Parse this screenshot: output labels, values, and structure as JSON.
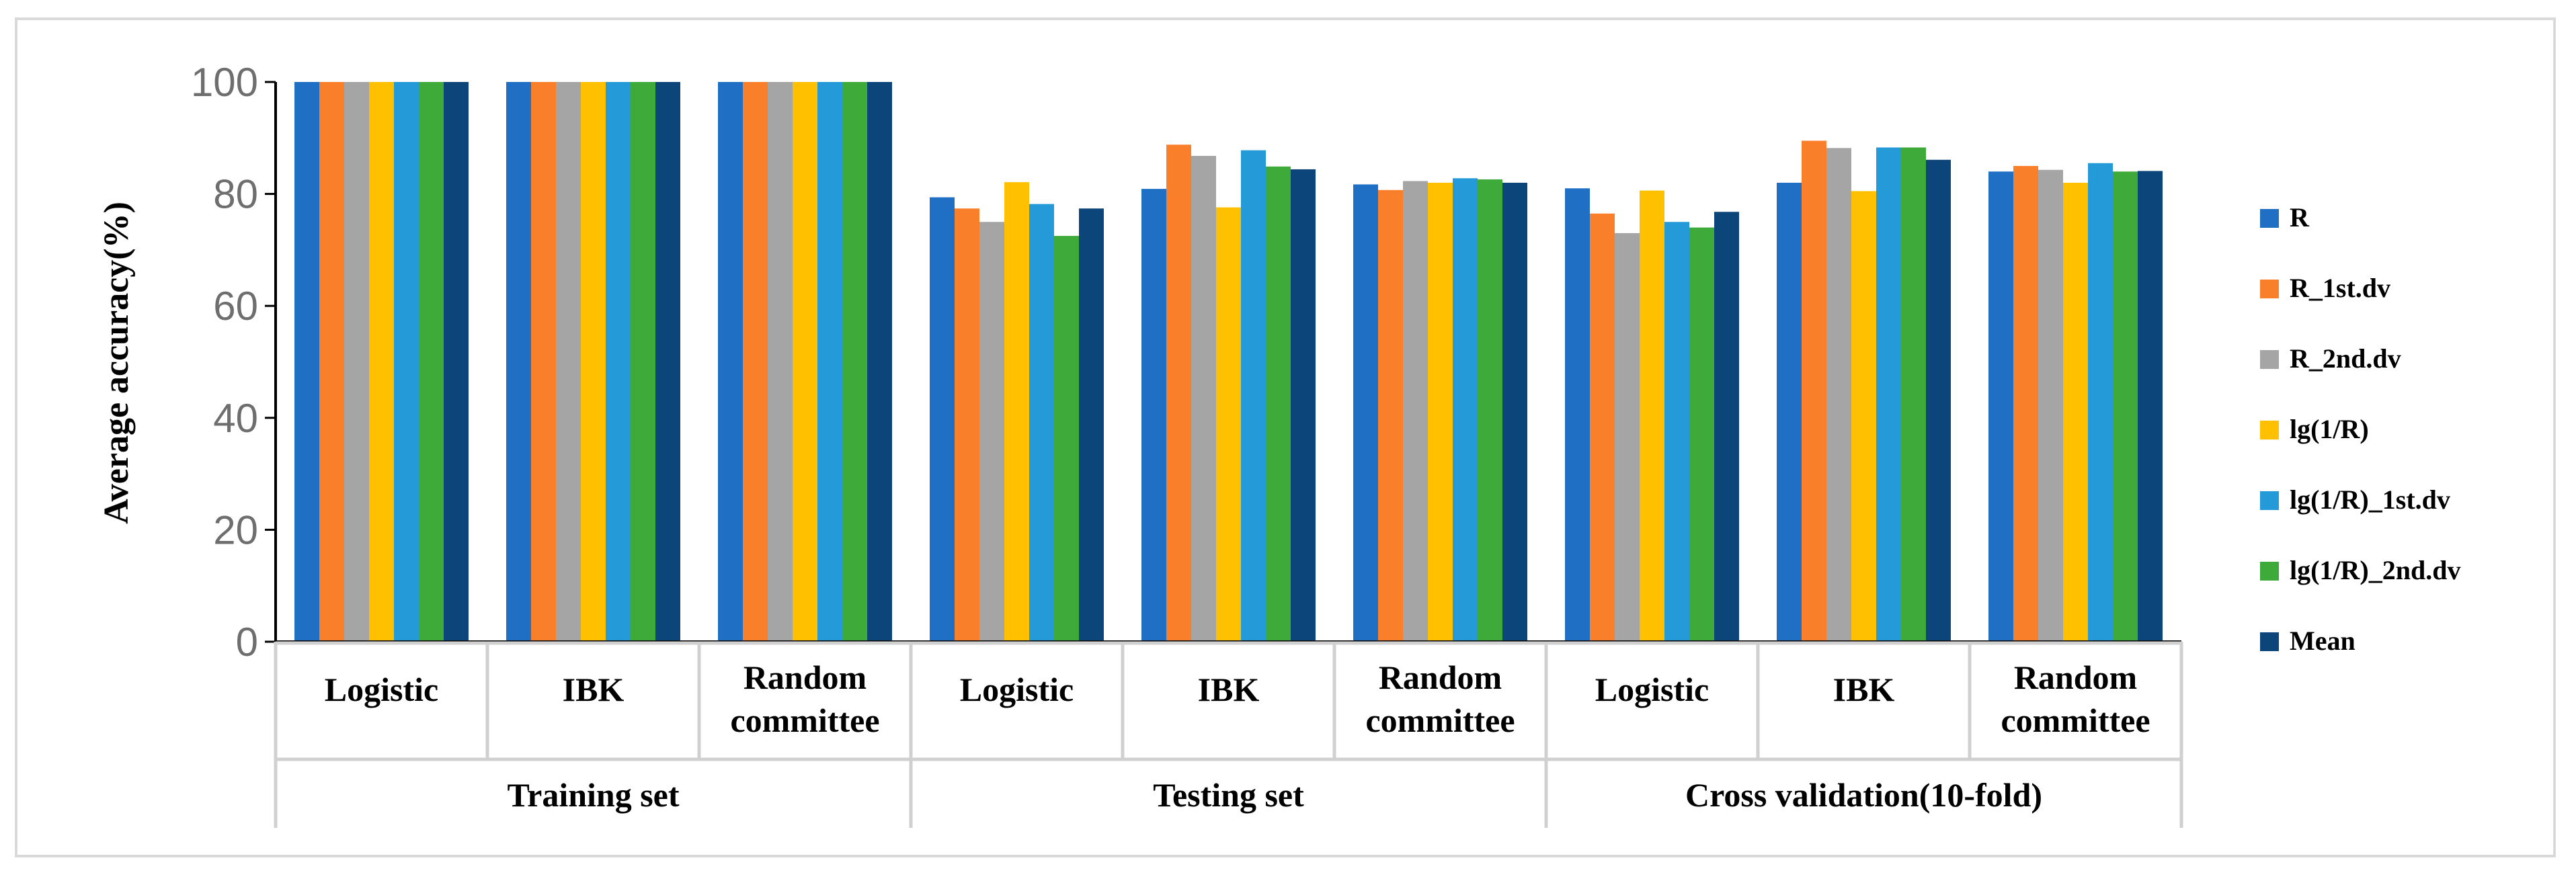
{
  "chart_data": {
    "type": "bar",
    "ylabel": "Average accuracy(%)",
    "ylim": [
      0,
      100
    ],
    "yticks": [
      0,
      20,
      40,
      60,
      80,
      100
    ],
    "groups": [
      {
        "label": "Training set",
        "categories": [
          "Logistic",
          "IBK",
          "Random committee"
        ]
      },
      {
        "label": "Testing set",
        "categories": [
          "Logistic",
          "IBK",
          "Random committee"
        ]
      },
      {
        "label": "Cross validation(10-fold)",
        "categories": [
          "Logistic",
          "IBK",
          "Random committee"
        ]
      }
    ],
    "categories": [
      "Logistic",
      "IBK",
      "Random committee",
      "Logistic",
      "IBK",
      "Random committee",
      "Logistic",
      "IBK",
      "Random committee"
    ],
    "series": [
      {
        "name": "R",
        "color": "#1f6fc5",
        "values": [
          100,
          100,
          100,
          79.4,
          80.9,
          81.7,
          81.0,
          82.0,
          84.0
        ]
      },
      {
        "name": "R_1st.dv",
        "color": "#f97f2b",
        "values": [
          100,
          100,
          100,
          77.4,
          88.8,
          80.7,
          76.5,
          89.5,
          85.0
        ]
      },
      {
        "name": "R_2nd.dv",
        "color": "#a5a5a5",
        "values": [
          100,
          100,
          100,
          75.0,
          86.8,
          82.3,
          73.0,
          88.2,
          84.3
        ]
      },
      {
        "name": "lg(1/R)",
        "color": "#ffc000",
        "values": [
          100,
          100,
          100,
          82.1,
          77.6,
          82.0,
          80.6,
          80.5,
          82.0
        ]
      },
      {
        "name": "lg(1/R)_1st.dv",
        "color": "#259ad8",
        "values": [
          100,
          100,
          100,
          78.2,
          87.8,
          82.8,
          75.0,
          88.3,
          85.5
        ]
      },
      {
        "name": "lg(1/R)_2nd.dv",
        "color": "#3eaa3a",
        "values": [
          100,
          100,
          100,
          72.5,
          84.9,
          82.6,
          74.0,
          88.3,
          84.0
        ]
      },
      {
        "name": "Mean",
        "color": "#0b4579",
        "values": [
          100,
          100,
          100,
          77.4,
          84.4,
          82.0,
          76.8,
          86.1,
          84.1
        ]
      }
    ]
  }
}
